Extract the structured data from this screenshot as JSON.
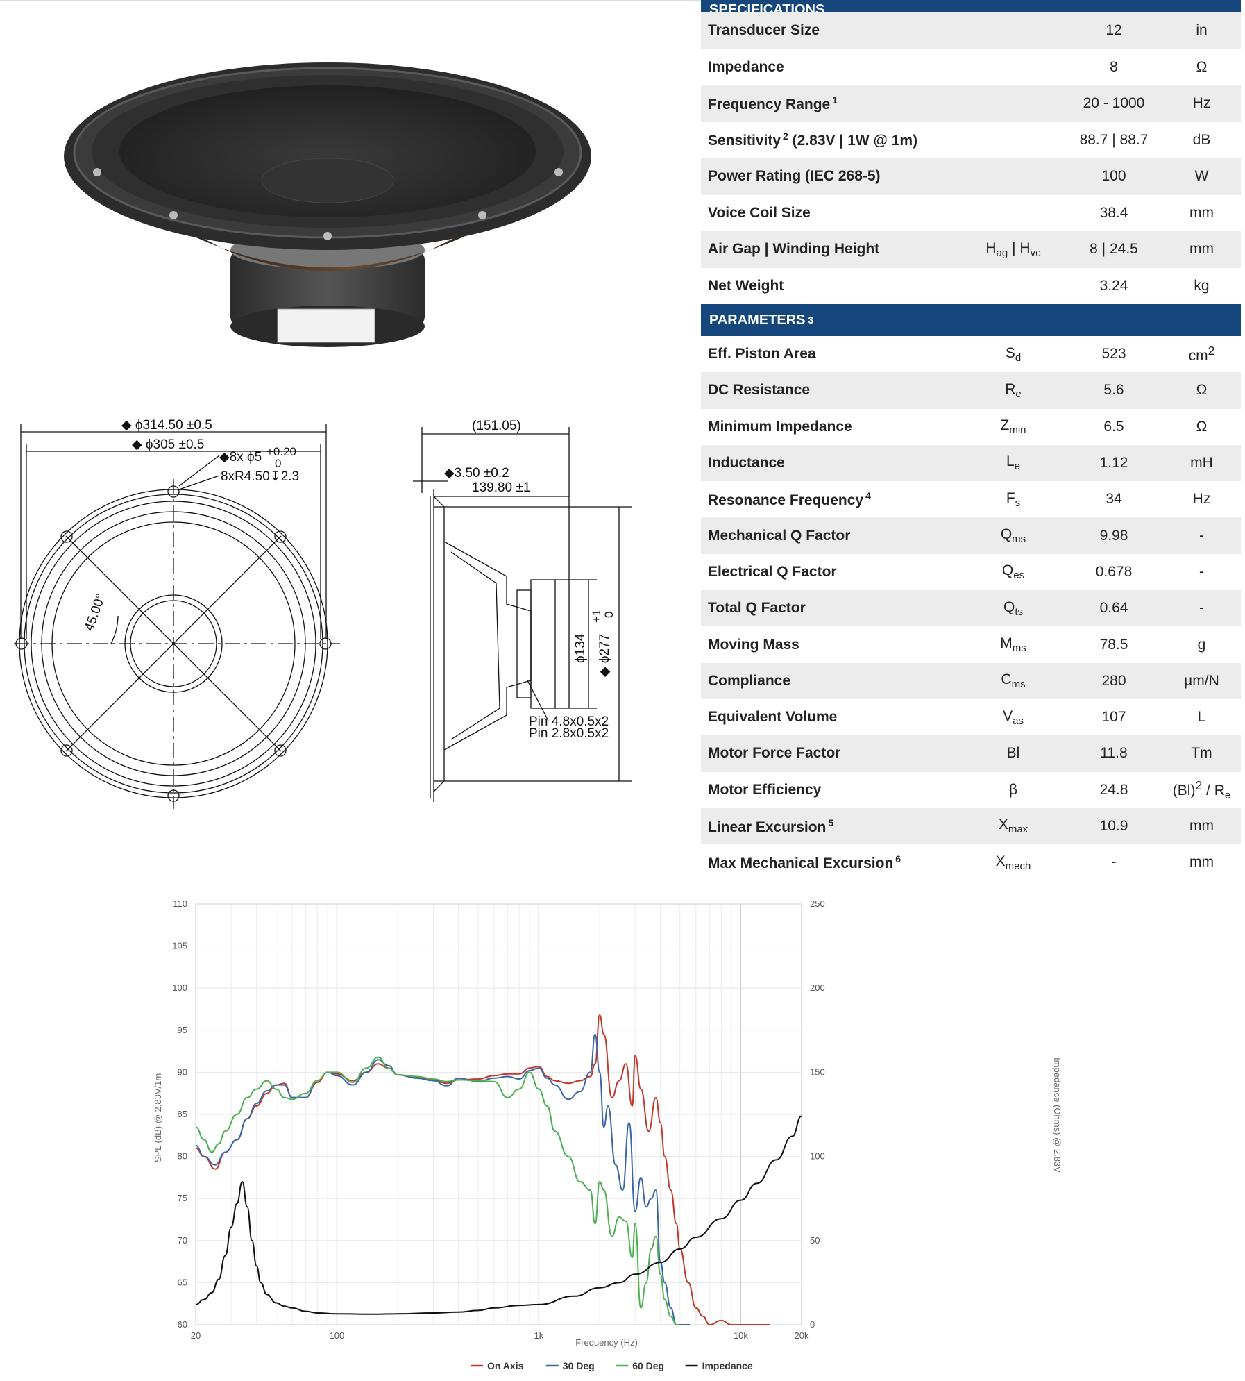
{
  "specifications": {
    "header": "SPECIFICATIONS",
    "rows": [
      {
        "label": "Transducer Size",
        "sup": "",
        "extra": "",
        "sym": "",
        "sym_sub": "",
        "value": "12",
        "unit": "in",
        "unit_sup": "",
        "unit_sub": ""
      },
      {
        "label": "Impedance",
        "sup": "",
        "extra": "",
        "sym": "",
        "sym_sub": "",
        "value": "8",
        "unit": "Ω",
        "unit_sup": "",
        "unit_sub": ""
      },
      {
        "label": "Frequency Range",
        "sup": "1",
        "extra": "",
        "sym": "",
        "sym_sub": "",
        "value": "20 - 1000",
        "unit": "Hz",
        "unit_sup": "",
        "unit_sub": ""
      },
      {
        "label": "Sensitivity",
        "sup": "2",
        "extra": " (2.83V | 1W @ 1m)",
        "sym": "",
        "sym_sub": "",
        "value": "88.7 | 88.7",
        "unit": "dB",
        "unit_sup": "",
        "unit_sub": ""
      },
      {
        "label": "Power Rating (IEC 268-5)",
        "sup": "",
        "extra": "",
        "sym": "",
        "sym_sub": "",
        "value": "100",
        "unit": "W",
        "unit_sup": "",
        "unit_sub": ""
      },
      {
        "label": "Voice Coil Size",
        "sup": "",
        "extra": "",
        "sym": "",
        "sym_sub": "",
        "value": "38.4",
        "unit": "mm",
        "unit_sup": "",
        "unit_sub": ""
      },
      {
        "label": "Air Gap | Winding Height",
        "sup": "",
        "extra": "",
        "sym": "H",
        "sym_sub": "ag",
        "sym2": " | H",
        "sym2_sub": "vc",
        "value": "8 | 24.5",
        "unit": "mm",
        "unit_sup": "",
        "unit_sub": ""
      },
      {
        "label": "Net Weight",
        "sup": "",
        "extra": "",
        "sym": "",
        "sym_sub": "",
        "value": "3.24",
        "unit": "kg",
        "unit_sup": "",
        "unit_sub": ""
      }
    ]
  },
  "parameters": {
    "header": "PARAMETERS",
    "header_sup": "3",
    "rows": [
      {
        "label": "Eff. Piston Area",
        "sup": "",
        "sym": "S",
        "sym_sub": "d",
        "value": "523",
        "unit": "cm",
        "unit_sup": "2",
        "unit_sub": ""
      },
      {
        "label": "DC Resistance",
        "sup": "",
        "sym": "R",
        "sym_sub": "e",
        "value": "5.6",
        "unit": "Ω",
        "unit_sup": "",
        "unit_sub": ""
      },
      {
        "label": "Minimum Impedance",
        "sup": "",
        "sym": "Z",
        "sym_sub": "min",
        "value": "6.5",
        "unit": "Ω",
        "unit_sup": "",
        "unit_sub": ""
      },
      {
        "label": "Inductance",
        "sup": "",
        "sym": "L",
        "sym_sub": "e",
        "value": "1.12",
        "unit": "mH",
        "unit_sup": "",
        "unit_sub": ""
      },
      {
        "label": "Resonance Frequency",
        "sup": "4",
        "sym": "F",
        "sym_sub": "s",
        "value": "34",
        "unit": "Hz",
        "unit_sup": "",
        "unit_sub": ""
      },
      {
        "label": "Mechanical Q Factor",
        "sup": "",
        "sym": "Q",
        "sym_sub": "ms",
        "value": "9.98",
        "unit": "-",
        "unit_sup": "",
        "unit_sub": ""
      },
      {
        "label": "Electrical Q Factor",
        "sup": "",
        "sym": "Q",
        "sym_sub": "es",
        "value": "0.678",
        "unit": "-",
        "unit_sup": "",
        "unit_sub": ""
      },
      {
        "label": "Total Q Factor",
        "sup": "",
        "sym": "Q",
        "sym_sub": "ts",
        "value": "0.64",
        "unit": "-",
        "unit_sup": "",
        "unit_sub": ""
      },
      {
        "label": "Moving Mass",
        "sup": "",
        "sym": "M",
        "sym_sub": "ms",
        "value": "78.5",
        "unit": "g",
        "unit_sup": "",
        "unit_sub": ""
      },
      {
        "label": "Compliance",
        "sup": "",
        "sym": "C",
        "sym_sub": "ms",
        "value": "280",
        "unit": "µm/N",
        "unit_sup": "",
        "unit_sub": ""
      },
      {
        "label": "Equivalent Volume",
        "sup": "",
        "sym": "V",
        "sym_sub": "as",
        "value": "107",
        "unit": "L",
        "unit_sup": "",
        "unit_sub": ""
      },
      {
        "label": "Motor Force Factor",
        "sup": "",
        "sym": "Bl",
        "sym_sub": "",
        "value": "11.8",
        "unit": "Tm",
        "unit_sup": "",
        "unit_sub": ""
      },
      {
        "label": "Motor Efficiency",
        "sup": "",
        "sym": "β",
        "sym_sub": "",
        "value": "24.8",
        "unit": "(Bl)",
        "unit_sup": "2",
        "unit_tail": " / R",
        "unit_sub": "e"
      },
      {
        "label": "Linear Excursion",
        "sup": "5",
        "sym": "X",
        "sym_sub": "max",
        "value": "10.9",
        "unit": "mm",
        "unit_sup": "",
        "unit_sub": ""
      },
      {
        "label": "Max Mechanical Excursion",
        "sup": "6",
        "sym": "X",
        "sym_sub": "mech",
        "value": "-",
        "unit": "mm",
        "unit_sup": "",
        "unit_sub": ""
      }
    ]
  },
  "drawing": {
    "dim_outer": "◆ ϕ314.50 ±0.5",
    "dim_inner": "◆ ϕ305 ±0.5",
    "dim_holes": "◆8x ϕ5",
    "dim_holes_tol_top": "+0.20",
    "dim_holes_tol_bot": "0",
    "dim_counter": "8xR4.50↧2.3",
    "angle": "45.00°",
    "depth_total": "(151.05)",
    "flange": "◆3.50 ±0.2",
    "depth": "139.80 ±1",
    "magnet_dia": "ϕ134",
    "cutout_dia": "◆ ϕ277",
    "cutout_tol_top": "+1",
    "cutout_tol_bot": "0",
    "pin1": "Pin 4.8x0.5x2",
    "pin2": "Pin 2.8x0.5x2"
  },
  "chart_data": {
    "type": "line",
    "xscale": "log",
    "xlim": [
      20,
      20000
    ],
    "ylim": [
      60,
      110
    ],
    "y2lim": [
      0,
      250
    ],
    "xlabel": "Frequency (Hz)",
    "ylabel": "SPL (dB) @ 2.83V/1m",
    "y2label": "Impedance (Ohms) @ 2.83V",
    "x_ticks": [
      {
        "v": 20,
        "label": "20"
      },
      {
        "v": 100,
        "label": "100"
      },
      {
        "v": 1000,
        "label": "1k"
      },
      {
        "v": 10000,
        "label": "10k"
      },
      {
        "v": 20000,
        "label": "20k"
      }
    ],
    "y_ticks": [
      60,
      65,
      70,
      75,
      80,
      85,
      90,
      95,
      100,
      105,
      110
    ],
    "y2_ticks": [
      0,
      50,
      100,
      150,
      200,
      250
    ],
    "grid": true,
    "legend_position": "bottom",
    "series": [
      {
        "name": "On Axis",
        "color": "#c0392b",
        "axis": "left",
        "x": [
          20,
          22,
          25,
          28,
          32,
          36,
          40,
          45,
          50,
          55,
          60,
          70,
          80,
          90,
          100,
          120,
          140,
          160,
          180,
          200,
          250,
          300,
          350,
          400,
          500,
          600,
          700,
          800,
          900,
          1000,
          1100,
          1200,
          1400,
          1600,
          1800,
          1900,
          2000,
          2100,
          2300,
          2500,
          2700,
          2900,
          3000,
          3200,
          3500,
          3800,
          4000,
          4200,
          4500,
          4800,
          5000,
          5500,
          6000,
          6500,
          7000,
          8000,
          9000,
          10000,
          12000,
          14000
        ],
        "y": [
          81,
          80,
          78.5,
          80.5,
          82,
          84.5,
          86,
          87.5,
          88.5,
          88.7,
          87,
          87,
          88.8,
          90,
          89.8,
          89,
          90,
          91,
          90.5,
          89.7,
          89.4,
          89.1,
          88.7,
          89.1,
          89.2,
          89.6,
          89.8,
          89.8,
          90.5,
          90.7,
          89.5,
          89,
          88.7,
          89,
          89.5,
          91,
          96.8,
          94.5,
          87,
          89,
          91,
          86,
          92,
          88,
          83,
          87,
          84,
          80,
          76,
          72,
          69,
          65,
          62,
          61,
          60,
          60.5,
          60,
          59.5,
          60,
          59
        ]
      },
      {
        "name": "30 Deg",
        "color": "#3a66a8",
        "axis": "left",
        "x": [
          20,
          22,
          25,
          28,
          32,
          36,
          40,
          45,
          50,
          55,
          60,
          70,
          80,
          90,
          100,
          120,
          140,
          160,
          180,
          200,
          250,
          300,
          350,
          400,
          500,
          600,
          700,
          800,
          900,
          1000,
          1100,
          1200,
          1400,
          1600,
          1800,
          1900,
          2000,
          2100,
          2200,
          2400,
          2600,
          2800,
          3000,
          3200,
          3400,
          3600,
          3800,
          4000,
          4200,
          4500,
          4800,
          5200,
          5600
        ],
        "y": [
          81.3,
          80,
          79,
          80.5,
          82,
          84.5,
          86.3,
          87.8,
          88.5,
          88.5,
          87,
          87,
          89,
          90,
          89.6,
          88.5,
          90,
          91.5,
          90.8,
          89.7,
          89.3,
          89,
          88.4,
          89.3,
          88.9,
          89.3,
          89.5,
          89.2,
          90.2,
          90.5,
          89.3,
          88.5,
          86.8,
          87.7,
          90,
          94.5,
          90,
          83.5,
          86,
          79,
          76,
          84,
          73.5,
          77.5,
          74,
          75,
          76,
          67.5,
          65,
          62,
          60,
          60,
          60
        ]
      },
      {
        "name": "60 Deg",
        "color": "#4caf50",
        "axis": "left",
        "x": [
          20,
          22,
          24,
          26,
          28,
          32,
          36,
          40,
          45,
          50,
          55,
          60,
          70,
          80,
          90,
          100,
          120,
          140,
          160,
          180,
          200,
          250,
          300,
          350,
          400,
          500,
          600,
          700,
          800,
          900,
          1000,
          1100,
          1200,
          1400,
          1600,
          1800,
          1900,
          2000,
          2100,
          2300,
          2500,
          2700,
          2900,
          3000,
          3200,
          3400,
          3600,
          3800,
          4000,
          4200,
          4500,
          4800,
          5000
        ],
        "y": [
          83.5,
          82,
          80.5,
          81.5,
          83,
          85,
          87,
          88,
          89,
          88,
          87,
          86.8,
          87.5,
          89,
          90,
          90,
          88.8,
          90.5,
          91.8,
          90.5,
          89.7,
          89.5,
          89.2,
          88.9,
          89.1,
          89,
          88.9,
          87,
          88,
          90,
          88,
          86,
          83,
          80,
          77,
          76,
          72,
          77,
          76,
          70.5,
          72.8,
          72.3,
          68,
          72,
          62,
          65,
          69,
          70.5,
          66,
          63,
          61,
          60,
          60
        ]
      },
      {
        "name": "Impedance",
        "color": "#111111",
        "axis": "right",
        "x": [
          20,
          22,
          24,
          26,
          28,
          30,
          32,
          34,
          36,
          38,
          40,
          42,
          45,
          50,
          55,
          60,
          70,
          80,
          100,
          150,
          200,
          300,
          400,
          500,
          600,
          800,
          1000,
          1500,
          2000,
          2500,
          3000,
          4000,
          5000,
          6000,
          8000,
          10000,
          12000,
          15000,
          18000,
          20000
        ],
        "y": [
          12,
          15,
          19,
          27,
          41,
          58,
          72,
          85,
          70,
          50,
          35,
          25,
          18,
          13,
          11,
          10,
          8,
          7,
          6.5,
          6.3,
          6.5,
          7,
          7.5,
          8.5,
          10,
          11.5,
          12,
          17,
          22,
          25,
          30,
          37,
          45,
          52,
          63,
          74,
          84,
          98,
          112,
          124
        ]
      }
    ]
  }
}
